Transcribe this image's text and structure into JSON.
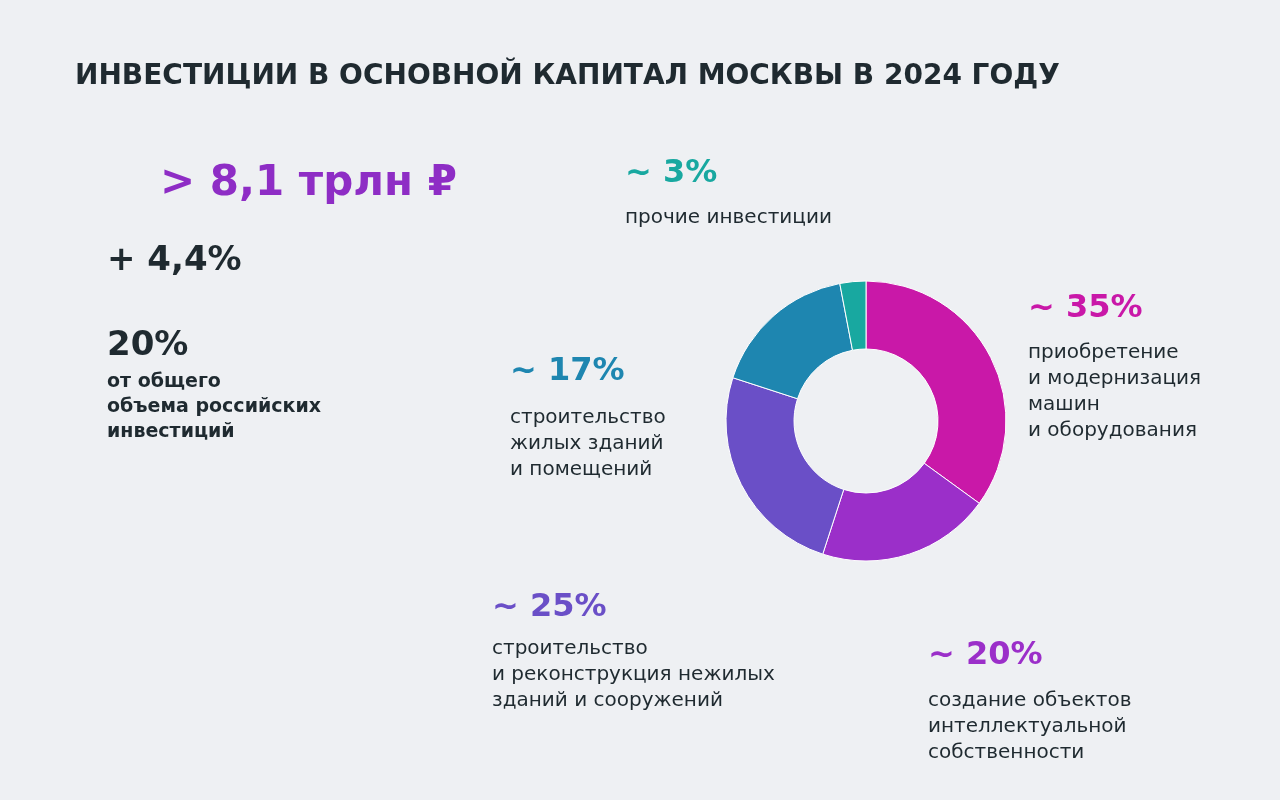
{
  "chart_data": {
    "type": "donut",
    "title": "ИНВЕСТИЦИИ В ОСНОВНОЙ КАПИТАЛ МОСКВЫ В 2024 ГОДУ",
    "categories": [
      "приобретение\nи модернизация\nмашин\nи оборудования",
      "создание объектов\nинтеллектуальной\nсобственности",
      "строительство\nи реконструкция нежилых\nзданий и сооружений",
      "строительство\nжилых зданий\nи помещений",
      "прочие инвестиции"
    ],
    "values": [
      35,
      20,
      25,
      17,
      3
    ],
    "value_labels": [
      "~ 35%",
      "~ 20%",
      "~ 25%",
      "~ 17%",
      "~ 3%"
    ],
    "colors": [
      "#c918a8",
      "#9b2fc9",
      "#6a4fc7",
      "#1e86b0",
      "#18a8a0"
    ],
    "annotations": [
      "> 8,1 трлн ₽",
      "+ 4,4%",
      "20%",
      "от общего\nобъема российских\nинвестиций"
    ],
    "legend": false
  }
}
